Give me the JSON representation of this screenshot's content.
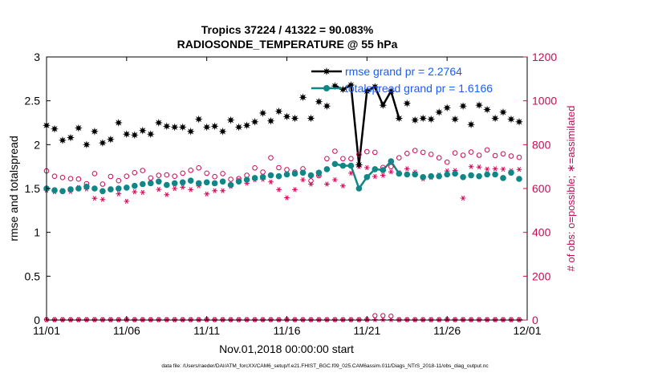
{
  "chart_data": {
    "type": "scatter",
    "title": "Tropics 37224 / 41322 = 90.083%",
    "subtitle": "RADIOSONDE_TEMPERATURE @ 55 hPa",
    "xlabel": "Nov.01,2018 00:00:00 start",
    "ylabel": "rmse and totalspread",
    "y2label": "# of obs: o=possible; ∗=assimilated",
    "footnote": "data file: /Users/raeder/DAI/ATM_forcXX/CAM6_setup/f.e21.FHIST_BGC.f09_025.CAM6assim.011/Diags_NTrS_2018-11/obs_diag_output.nc",
    "xlim": [
      0,
      30
    ],
    "ylim": [
      0,
      3
    ],
    "y2lim": [
      0,
      1200
    ],
    "grid": false,
    "legend_position": "top-right",
    "x_tick_values": [
      0,
      5,
      10,
      15,
      20,
      25,
      30
    ],
    "x_tick_labels": [
      "11/01",
      "11/06",
      "11/11",
      "11/16",
      "11/21",
      "11/26",
      "12/01"
    ],
    "y_ticks": [
      "0",
      "0.5",
      "1",
      "1.5",
      "2",
      "2.5",
      "3"
    ],
    "y2_ticks": [
      "0",
      "200",
      "400",
      "600",
      "800",
      "1000",
      "1200"
    ],
    "legend": [
      "rmse grand pr = 2.2764",
      "totalspread grand pr = 1.6166"
    ],
    "colors": {
      "rmse": "#000000",
      "spread": "#128586",
      "obs": "#cc0a55",
      "legend_text": "#1a5cff"
    },
    "x": [
      0.0,
      0.5,
      1.0,
      1.5,
      2.0,
      2.5,
      3.0,
      3.5,
      4.0,
      4.5,
      5.0,
      5.5,
      6.0,
      6.5,
      7.0,
      7.5,
      8.0,
      8.5,
      9.0,
      9.5,
      10.0,
      10.5,
      11.0,
      11.5,
      12.0,
      12.5,
      13.0,
      13.5,
      14.0,
      14.5,
      15.0,
      15.5,
      16.0,
      16.5,
      17.0,
      17.5,
      18.0,
      18.5,
      19.0,
      19.5,
      20.0,
      20.5,
      21.0,
      21.5,
      22.0,
      22.5,
      23.0,
      23.5,
      24.0,
      24.5,
      25.0,
      25.5,
      26.0,
      26.5,
      27.0,
      27.5,
      28.0,
      28.5,
      29.0,
      29.5
    ],
    "series": [
      {
        "name": "rmse",
        "values": [
          2.22,
          2.18,
          2.05,
          2.08,
          2.19,
          2.0,
          2.15,
          2.02,
          2.06,
          2.25,
          2.12,
          2.11,
          2.16,
          2.12,
          2.25,
          2.21,
          2.2,
          2.2,
          2.15,
          2.29,
          2.2,
          2.21,
          2.15,
          2.28,
          2.2,
          2.22,
          2.26,
          2.36,
          2.27,
          2.38,
          2.32,
          2.3,
          2.54,
          2.3,
          2.49,
          2.44,
          2.67,
          2.63,
          2.68,
          1.77,
          2.61,
          2.66,
          2.45,
          2.61,
          2.3,
          2.47,
          2.28,
          2.3,
          2.29,
          2.37,
          2.42,
          2.29,
          2.44,
          2.23,
          2.45,
          2.4,
          2.3,
          2.37,
          2.29,
          2.26
        ]
      },
      {
        "name": "totalspread",
        "values": [
          1.5,
          1.48,
          1.47,
          1.49,
          1.5,
          1.52,
          1.5,
          1.47,
          1.49,
          1.5,
          1.51,
          1.53,
          1.55,
          1.56,
          1.58,
          1.54,
          1.56,
          1.57,
          1.59,
          1.56,
          1.57,
          1.56,
          1.58,
          1.54,
          1.58,
          1.6,
          1.62,
          1.63,
          1.65,
          1.64,
          1.66,
          1.67,
          1.68,
          1.65,
          1.68,
          1.72,
          1.78,
          1.76,
          1.76,
          1.5,
          1.63,
          1.72,
          1.71,
          1.81,
          1.67,
          1.66,
          1.66,
          1.63,
          1.64,
          1.64,
          1.66,
          1.67,
          1.63,
          1.65,
          1.64,
          1.66,
          1.66,
          1.62,
          1.68,
          1.61
        ]
      },
      {
        "name": "obs possible",
        "axis": "right",
        "values": [
          680,
          656,
          650,
          645,
          643,
          622,
          668,
          620,
          655,
          636,
          656,
          672,
          682,
          648,
          660,
          662,
          656,
          670,
          683,
          694,
          670,
          654,
          668,
          642,
          645,
          660,
          694,
          675,
          740,
          695,
          686,
          675,
          690,
          635,
          658,
          736,
          770,
          736,
          736,
          755,
          768,
          765,
          696,
          700,
          740,
          760,
          773,
          765,
          756,
          740,
          720,
          762,
          752,
          766,
          752,
          776,
          750,
          758,
          748,
          742
        ]
      },
      {
        "name": "obs assimilated",
        "axis": "right",
        "values": [
          592,
          585,
          590,
          586,
          604,
          598,
          555,
          550,
          598,
          576,
          542,
          585,
          582,
          630,
          596,
          572,
          600,
          606,
          595,
          612,
          575,
          590,
          590,
          610,
          638,
          624,
          640,
          642,
          630,
          595,
          558,
          595,
          640,
          620,
          660,
          620,
          640,
          612,
          670,
          700,
          695,
          655,
          660,
          676,
          672,
          690,
          675,
          644,
          650,
          662,
          680,
          682,
          556,
          700,
          698,
          688,
          690,
          688,
          681,
          687
        ]
      },
      {
        "name": "rejected possible",
        "axis": "right",
        "values": [
          2,
          2,
          2,
          2,
          2,
          2,
          2,
          2,
          2,
          2,
          2,
          2,
          2,
          2,
          2,
          2,
          2,
          2,
          2,
          2,
          2,
          2,
          2,
          2,
          2,
          2,
          2,
          2,
          2,
          2,
          2,
          2,
          2,
          2,
          2,
          2,
          2,
          2,
          2,
          2,
          2,
          20,
          20,
          18,
          2,
          2,
          2,
          2,
          2,
          2,
          2,
          2,
          2,
          2,
          2,
          2,
          2,
          2,
          2,
          2
        ]
      },
      {
        "name": "rejected assimilated",
        "axis": "right",
        "values": [
          2,
          2,
          2,
          2,
          2,
          2,
          2,
          2,
          2,
          2,
          2,
          2,
          2,
          2,
          2,
          2,
          2,
          2,
          2,
          2,
          2,
          2,
          2,
          2,
          2,
          2,
          2,
          2,
          2,
          2,
          2,
          2,
          2,
          2,
          2,
          2,
          2,
          2,
          2,
          2,
          2,
          2,
          2,
          2,
          2,
          2,
          2,
          2,
          2,
          2,
          2,
          2,
          2,
          2,
          2,
          2,
          2,
          2,
          2,
          2
        ]
      }
    ]
  }
}
